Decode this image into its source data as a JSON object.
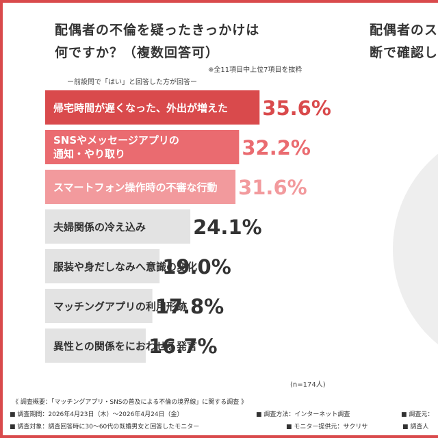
{
  "title_lines": [
    "配偶者の不倫を疑ったきっかけは",
    "何ですか？（複数回答可）"
  ],
  "second_panel_title_lines": [
    "配偶者のス",
    "断で確認し"
  ],
  "notes": {
    "selection": "※全11項目中上位7項目を抜粋",
    "condition": "ー前設問で「はい」と回答した方が回答ー"
  },
  "sample_size": "(n=174人)",
  "colors": {
    "bar_top": "#d94a4c",
    "bar_second": "#ea6b70",
    "bar_third": "#f29a9d",
    "bar_rest": "#e3e3e3",
    "value_top": "#d94a4c",
    "value_second": "#ea6b70",
    "value_third": "#f29a9d",
    "value_rest": "#333333",
    "frame": "#d94a4c"
  },
  "chart_data": {
    "type": "bar",
    "orientation": "horizontal",
    "categories": [
      "帰宅時間が遅くなった、外出が増えた",
      "SNSやメッセージアプリの\n通知・やり取り",
      "スマートフォン操作時の不審な行動",
      "夫婦関係の冷え込み",
      "服装や身だしなみへ意識の変化",
      "マッチングアプリの利用形跡",
      "異性との関係をにおわせる発言"
    ],
    "values": [
      35.6,
      32.2,
      31.6,
      24.1,
      19.0,
      17.8,
      16.7
    ],
    "value_labels": [
      "35.6%",
      "32.2%",
      "31.6%",
      "24.1%",
      "19.0%",
      "17.8%",
      "16.7%"
    ],
    "unit": "%",
    "grid": false,
    "legend": "none"
  },
  "footer": {
    "heading": "《 調査概要：「マッチングアプリ・SNSの普及による不倫の境界線」に関する調査 》",
    "period": "■ 調査期間：2026年4月23日（木）～2026年4月24日（金）",
    "method": "■ 調査方法：インターネット調査",
    "source": "■ 調査元：",
    "target": "■ 調査対象：調査回答時に30～60代の既婚男女と回答したモニター",
    "provider": "■ モニター提供元：サクリサ",
    "count": "■ 調査人"
  }
}
